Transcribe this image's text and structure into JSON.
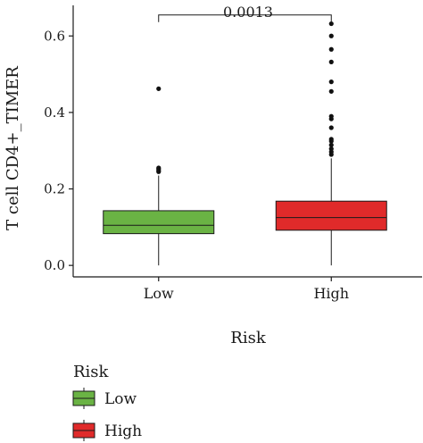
{
  "chart_data": {
    "type": "box",
    "xlabel": "Risk",
    "ylabel": "T cell CD4+_TIMER",
    "ylim": [
      -0.03,
      0.68
    ],
    "yticks": [
      0.0,
      0.2,
      0.4,
      0.6
    ],
    "ytick_labels": [
      "0.0",
      "0.2",
      "0.4",
      "0.6"
    ],
    "categories": [
      "Low",
      "High"
    ],
    "series": [
      {
        "name": "Low",
        "color": "#6ab344",
        "min": 0.0,
        "q1": 0.083,
        "median": 0.105,
        "q3": 0.143,
        "whisker_high": 0.235,
        "outliers": [
          0.245,
          0.248,
          0.252,
          0.255,
          0.462
        ]
      },
      {
        "name": "High",
        "color": "#e02a2a",
        "min": 0.0,
        "q1": 0.092,
        "median": 0.125,
        "q3": 0.168,
        "whisker_high": 0.28,
        "outliers": [
          0.29,
          0.297,
          0.305,
          0.315,
          0.325,
          0.33,
          0.36,
          0.383,
          0.39,
          0.455,
          0.48,
          0.532,
          0.565,
          0.6,
          0.632
        ]
      }
    ],
    "annotation": {
      "label": "0.0013",
      "between": [
        "Low",
        "High"
      ],
      "y": 0.655
    },
    "legend": {
      "title": "Risk",
      "entries": [
        "Low",
        "High"
      ],
      "placement": "bottom-left"
    }
  }
}
